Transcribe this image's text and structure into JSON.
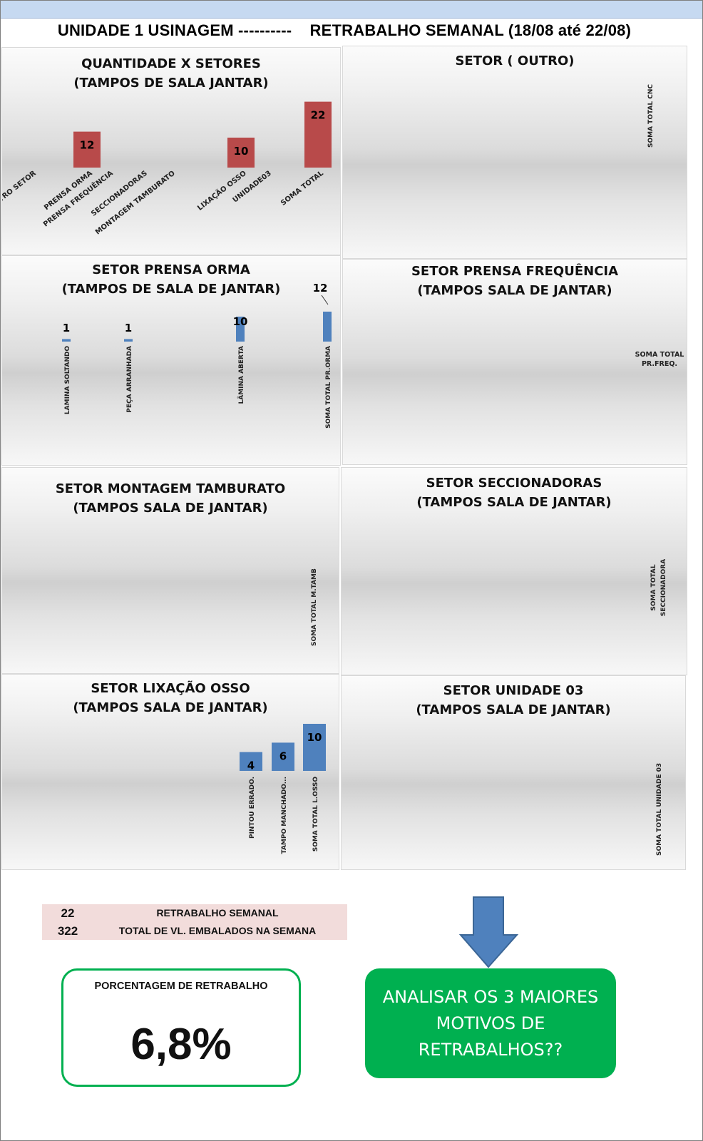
{
  "page": {
    "title": "UNIDADE 1 USINAGEM ----------    RETRABALHO SEMANAL (18/08 até 22/08)"
  },
  "colors": {
    "red_bar": "#b84a4a",
    "blue_bar": "#4f81bd",
    "green": "#00b050",
    "summary_bg": "#f2dcdb",
    "arrow": "#4f81bd"
  },
  "panels": {
    "quantidade": {
      "title1": "QUANTIDADE X SETORES",
      "title2": "(TAMPOS DE SALA JANTAR)"
    },
    "outro": {
      "title1": "SETOR ( OUTRO)",
      "title2": ""
    },
    "prensa_orma": {
      "title1": "SETOR PRENSA ORMA",
      "title2": "(TAMPOS DE SALA DE JANTAR)"
    },
    "prensa_freq": {
      "title1": "SETOR PRENSA FREQUÊNCIA",
      "title2": "(TAMPOS SALA DE JANTAR)"
    },
    "montagem": {
      "title1": "SETOR  MONTAGEM TAMBURATO",
      "title2": "(TAMPOS SALA DE JANTAR)"
    },
    "seccionadoras": {
      "title1": "SETOR SECCIONADORAS",
      "title2": "(TAMPOS SALA DE JANTAR)"
    },
    "lixacao": {
      "title1": "SETOR LIXAÇÃO OSSO",
      "title2": "(TAMPOS SALA DE JANTAR)"
    },
    "unidade03": {
      "title1": "SETOR UNIDADE 03",
      "title2": "(TAMPOS SALA DE JANTAR)"
    }
  },
  "chart_data": [
    {
      "id": "quantidade",
      "type": "bar",
      "title": "QUANTIDADE X SETORES (TAMPOS DE SALA JANTAR)",
      "categories": [
        "OUTRO SETOR",
        "PRENSA ORMA",
        "PRENSA FREQUÊNCIA",
        "SECCIONADORAS",
        "MONTAGEM TAMBURATO",
        "LIXAÇÃO OSSO",
        "UNIDADE03",
        "SOMA TOTAL"
      ],
      "values": [
        0,
        12,
        0,
        0,
        0,
        10,
        0,
        22
      ],
      "data_labels": [
        "",
        "12",
        "",
        "",
        "",
        "10",
        "",
        "22"
      ],
      "color": "#b84a4a"
    },
    {
      "id": "outro",
      "type": "bar",
      "title": "SETOR ( OUTRO)",
      "categories": [
        "SOMA TOTAL CNC"
      ],
      "values": [
        0
      ],
      "data_labels": [
        ""
      ],
      "color": "#4f81bd"
    },
    {
      "id": "prensa_orma",
      "type": "bar",
      "title": "SETOR PRENSA ORMA (TAMPOS DE SALA DE JANTAR)",
      "categories": [
        "LAMINA SOLTANDO",
        "PEÇA ARRANHADA",
        "LÂMINA ABERTA",
        "SOMA TOTAL PR.ORMA"
      ],
      "values": [
        1,
        1,
        10,
        12
      ],
      "data_labels": [
        "1",
        "1",
        "10",
        "12"
      ],
      "color": "#4f81bd"
    },
    {
      "id": "prensa_freq",
      "type": "bar",
      "title": "SETOR PRENSA FREQUÊNCIA (TAMPOS SALA DE JANTAR)",
      "categories": [
        "SOMA TOTAL PR.FREQ."
      ],
      "values": [
        0
      ],
      "data_labels": [
        ""
      ],
      "color": "#4f81bd"
    },
    {
      "id": "montagem",
      "type": "bar",
      "title": "SETOR  MONTAGEM TAMBURATO (TAMPOS SALA DE JANTAR)",
      "categories": [
        "SOMA TOTAL M.TAMB"
      ],
      "values": [
        0
      ],
      "data_labels": [
        ""
      ],
      "color": "#4f81bd"
    },
    {
      "id": "seccionadoras",
      "type": "bar",
      "title": "SETOR SECCIONADORAS (TAMPOS SALA DE JANTAR)",
      "categories": [
        "SOMA TOTAL SECCIONADORA"
      ],
      "values": [
        0
      ],
      "data_labels": [
        ""
      ],
      "color": "#4f81bd"
    },
    {
      "id": "lixacao",
      "type": "bar",
      "title": "SETOR LIXAÇÃO OSSO (TAMPOS SALA DE JANTAR)",
      "categories": [
        "PINTOU ERRADO.",
        "TAMPO MANCHADO...",
        "SOMA TOTAL L.OSSO"
      ],
      "values": [
        4,
        6,
        10
      ],
      "data_labels": [
        "4",
        "6",
        "10"
      ],
      "color": "#4f81bd"
    },
    {
      "id": "unidade03",
      "type": "bar",
      "title": "SETOR UNIDADE 03 (TAMPOS SALA DE JANTAR)",
      "categories": [
        "SOMA TOTAL UNIDADE 03"
      ],
      "values": [
        0
      ],
      "data_labels": [
        ""
      ],
      "color": "#4f81bd"
    }
  ],
  "summary": {
    "retrabalho_value": "22",
    "retrabalho_label": "RETRABALHO SEMANAL",
    "total_value": "322",
    "total_label": "TOTAL DE VL. EMBALADOS NA SEMANA"
  },
  "percentage": {
    "label": "PORCENTAGEM DE RETRABALHO",
    "value": "6,8%"
  },
  "callout": {
    "line1": "ANALISAR OS 3 MAIORES",
    "line2": "MOTIVOS DE",
    "line3": "RETRABALHOS??"
  }
}
